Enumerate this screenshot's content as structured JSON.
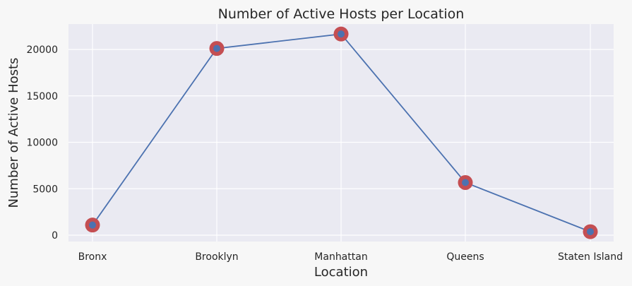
{
  "chart_data": {
    "type": "line",
    "title": "Number of Active Hosts per Location",
    "xlabel": "Location",
    "ylabel": "Number of Active Hosts",
    "categories": [
      "Bronx",
      "Brooklyn",
      "Manhattan",
      "Queens",
      "Staten Island"
    ],
    "values": [
      1091,
      20104,
      21661,
      5666,
      373
    ],
    "ylim": [
      -700,
      22800
    ],
    "yticks": [
      0,
      5000,
      10000,
      15000,
      20000
    ],
    "grid": true,
    "style": {
      "background": "#eaeaf2",
      "grid_color": "#ffffff",
      "line_color": "#4c72b0",
      "marker_outer_color": "#c44e52",
      "marker_inner_color": "#4c72b0"
    }
  }
}
